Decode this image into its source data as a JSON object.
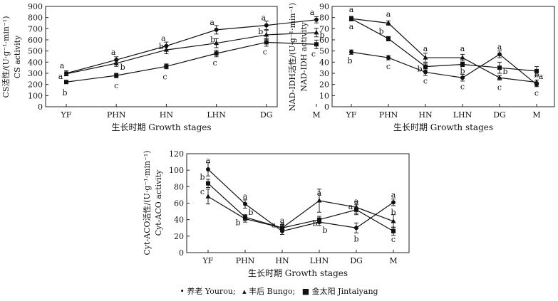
{
  "chart_data": [
    {
      "type": "line",
      "ylabel": "CS活性/(U·g⁻¹·min⁻¹)",
      "ylabel2": "CS activity",
      "xlabel": "生长时期 Growth stages",
      "categories": [
        "YF",
        "PHN",
        "HN",
        "LHN",
        "DG",
        "M"
      ],
      "yticks": [
        0,
        100,
        200,
        300,
        400,
        500,
        600,
        700,
        800,
        900
      ],
      "ylim": [
        0,
        900
      ],
      "series": [
        {
          "name": "养老 Yourou",
          "marker": "circle",
          "values": [
            300,
            420,
            545,
            690,
            730,
            780
          ],
          "errors": [
            22,
            28,
            35,
            38,
            38,
            28
          ],
          "letters": [
            "a",
            "a",
            "a",
            "a",
            "a",
            "a"
          ]
        },
        {
          "name": "丰后 Bungo",
          "marker": "triangle",
          "values": [
            295,
            390,
            510,
            570,
            645,
            665
          ],
          "errors": [
            18,
            28,
            35,
            40,
            40,
            38
          ],
          "letters": [
            "a",
            "b",
            "b",
            "b",
            "b",
            "b"
          ]
        },
        {
          "name": "金太阳 Jintaiyang",
          "marker": "square",
          "values": [
            222,
            280,
            362,
            478,
            578,
            560
          ],
          "errors": [
            15,
            20,
            22,
            30,
            35,
            38
          ],
          "letters": [
            "b",
            "c",
            "c",
            "c",
            "c",
            "c"
          ]
        }
      ]
    },
    {
      "type": "line",
      "ylabel": "NAD-IDH活性/(U·g⁻¹·min⁻¹)",
      "ylabel2": "NAD-IDH activity",
      "xlabel": "生长时期 Growth stages",
      "categories": [
        "YF",
        "PHN",
        "HN",
        "LHN",
        "DG",
        "M"
      ],
      "yticks": [
        0,
        10,
        20,
        30,
        40,
        50,
        60,
        70,
        80,
        90
      ],
      "ylim": [
        0,
        90
      ],
      "series": [
        {
          "name": "养老 Yourou",
          "marker": "circle",
          "values": [
            49,
            44,
            31,
            26,
            47,
            20
          ],
          "errors": [
            2,
            2,
            3,
            3,
            3,
            2
          ],
          "letters": [
            "b",
            "c",
            "c",
            "c",
            "a",
            "c"
          ]
        },
        {
          "name": "丰后 Bungo",
          "marker": "triangle",
          "values": [
            79,
            75,
            44,
            44,
            26,
            22
          ],
          "errors": [
            2,
            2,
            4,
            3,
            2,
            2
          ],
          "letters": [
            "a",
            "a",
            "a",
            "a",
            "c",
            "b"
          ]
        },
        {
          "name": "金太阳 Jintaiyang",
          "marker": "square",
          "values": [
            79,
            61,
            36,
            38,
            35,
            32
          ],
          "errors": [
            2,
            2,
            3,
            2,
            5,
            4
          ],
          "letters": [
            "a",
            "b",
            "b",
            "b",
            "b",
            "a"
          ]
        }
      ]
    },
    {
      "type": "line",
      "ylabel": "Cyt-ACO活性/(U·g⁻¹·min⁻¹)",
      "ylabel2": "Cyt-ACO activity",
      "xlabel": "生长时期 Growth stages",
      "categories": [
        "YF",
        "PHN",
        "HN",
        "LHN",
        "DG",
        "M"
      ],
      "yticks": [
        0,
        20,
        40,
        60,
        80,
        100,
        120
      ],
      "ylim": [
        0,
        120
      ],
      "series": [
        {
          "name": "养老 Yourou",
          "marker": "circle",
          "values": [
            101,
            59,
            26,
            37,
            30,
            61
          ],
          "errors": [
            8,
            5,
            4,
            4,
            6,
            4
          ],
          "letters": [
            "a",
            "a",
            "a",
            "b",
            "b",
            "a"
          ]
        },
        {
          "name": "丰后 Bungo",
          "marker": "triangle",
          "values": [
            68,
            41,
            30,
            63,
            55,
            38
          ],
          "errors": [
            9,
            4,
            4,
            14,
            7,
            8
          ],
          "letters": [
            "c",
            "b",
            "a",
            "a",
            "a",
            "b"
          ]
        },
        {
          "name": "金太阳 Jintaiyang",
          "marker": "square",
          "values": [
            84,
            43,
            30,
            40,
            52,
            26
          ],
          "errors": [
            5,
            3,
            4,
            4,
            6,
            5
          ],
          "letters": [
            "b",
            "b",
            "a",
            "b",
            "a",
            "c"
          ]
        }
      ]
    }
  ],
  "legend": {
    "items": [
      {
        "symbol": "•",
        "label": "养老 Yourou;"
      },
      {
        "symbol": "▴",
        "label": "丰后 Bungo;"
      },
      {
        "symbol": "■",
        "label": "金太阳 Jintaiyang"
      }
    ]
  }
}
